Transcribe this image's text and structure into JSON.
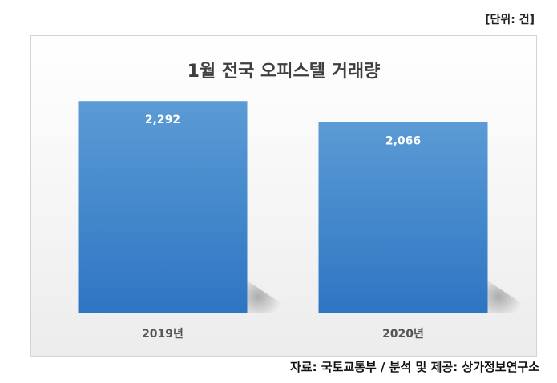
{
  "unit_label": "[단위: 건]",
  "source_label": "자료: 국토교통부 / 분석 및 제공: 상가정보연구소",
  "chart_data": {
    "type": "bar",
    "title": "1월 전국 오피스텔 거래량",
    "categories": [
      "2019년",
      "2020년"
    ],
    "values": [
      2292,
      2066
    ],
    "value_labels": [
      "2,292",
      "2,066"
    ],
    "ylim": [
      0,
      2900
    ],
    "grid": false,
    "colors": {
      "bar_top": "#5b9bd5",
      "bar_bottom": "#2e75c2",
      "value_label": "#ffffff",
      "category_label": "#555555"
    }
  }
}
